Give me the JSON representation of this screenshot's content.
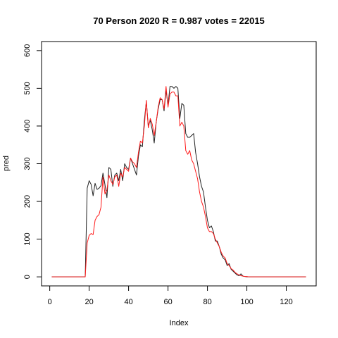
{
  "chart_data": {
    "type": "line",
    "title": "70 Person 2020 R = 0.987 votes = 22015",
    "xlabel": "Index",
    "ylabel": "pred",
    "xlim": [
      1,
      130
    ],
    "ylim": [
      0,
      600
    ],
    "xticks": [
      0,
      20,
      40,
      60,
      80,
      100,
      120
    ],
    "yticks": [
      0,
      100,
      200,
      300,
      400,
      500,
      600
    ],
    "grid": false,
    "colors": {
      "actual": "#222222",
      "pred": "#ff1a1a"
    },
    "series": [
      {
        "key": "actual",
        "x_start": 1,
        "values": [
          0,
          0,
          0,
          0,
          0,
          0,
          0,
          0,
          0,
          0,
          0,
          0,
          0,
          0,
          0,
          0,
          0,
          0,
          235,
          255,
          245,
          215,
          248,
          232,
          235,
          242,
          275,
          245,
          210,
          290,
          285,
          240,
          270,
          275,
          255,
          285,
          255,
          300,
          290,
          285,
          315,
          300,
          285,
          270,
          320,
          350,
          345,
          415,
          465,
          400,
          415,
          390,
          355,
          410,
          445,
          470,
          470,
          440,
          495,
          455,
          505,
          505,
          500,
          505,
          500,
          420,
          460,
          455,
          380,
          370,
          370,
          375,
          380,
          330,
          300,
          265,
          240,
          225,
          185,
          150,
          130,
          135,
          120,
          95,
          95,
          80,
          60,
          50,
          45,
          30,
          35,
          20,
          15,
          10,
          5,
          3,
          8,
          2,
          1,
          0,
          0,
          0,
          0,
          0,
          0,
          0,
          0,
          0,
          0,
          0,
          0,
          0,
          0,
          0,
          0,
          0,
          0,
          0,
          0,
          0,
          0,
          0,
          0,
          0,
          0,
          0,
          0,
          0,
          0,
          0
        ]
      },
      {
        "key": "pred",
        "x_start": 1,
        "values": [
          0,
          0,
          0,
          0,
          0,
          0,
          0,
          0,
          0,
          0,
          0,
          0,
          0,
          0,
          0,
          0,
          0,
          0,
          90,
          110,
          115,
          112,
          150,
          160,
          165,
          185,
          265,
          220,
          230,
          270,
          255,
          245,
          265,
          270,
          240,
          275,
          265,
          290,
          285,
          280,
          315,
          305,
          300,
          290,
          330,
          360,
          355,
          400,
          468,
          395,
          420,
          405,
          375,
          410,
          450,
          475,
          470,
          445,
          505,
          450,
          485,
          490,
          490,
          480,
          480,
          400,
          410,
          400,
          335,
          325,
          335,
          310,
          300,
          280,
          260,
          225,
          200,
          185,
          160,
          130,
          120,
          120,
          115,
          100,
          90,
          80,
          65,
          55,
          50,
          35,
          30,
          22,
          18,
          12,
          8,
          5,
          3,
          2,
          1,
          1,
          0,
          0,
          0,
          0,
          0,
          0,
          0,
          0,
          0,
          0,
          0,
          0,
          0,
          0,
          0,
          0,
          0,
          0,
          0,
          0,
          0,
          0,
          0,
          0,
          0,
          0,
          0,
          0,
          0,
          0
        ]
      }
    ]
  }
}
